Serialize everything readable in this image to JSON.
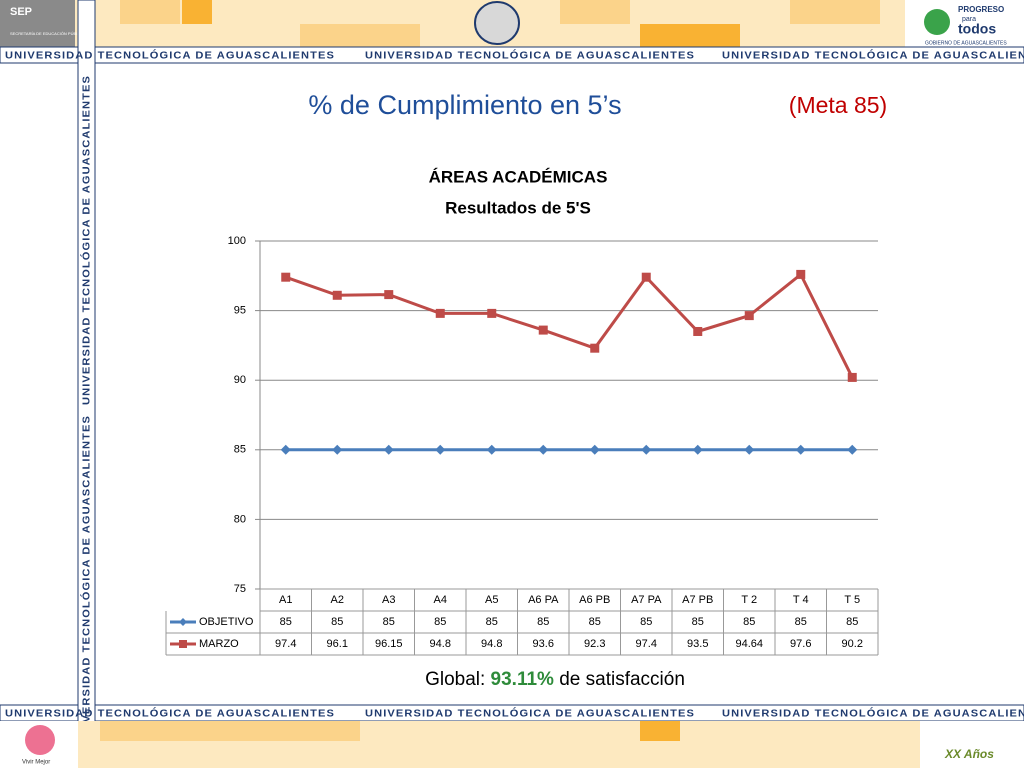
{
  "slide": {
    "title": "% de Cumplimiento en 5’s",
    "goal": "(Meta 85)",
    "global_prefix": "Global:",
    "global_value": "93.11%",
    "global_suffix": "de satisfacción",
    "banner": "UNIVERSIDAD TECNOLÓGICA DE AGUASCALIENTES",
    "sep_logo": "SEP",
    "sep_name": "SECRETARÍA DE EDUCACIÓN PÚBLICA",
    "progreso": "PROGRESO",
    "para": "para",
    "todos": "todos",
    "gobierno": "GOBIERNO DE AGUASCALIENTES",
    "vivir": "Vivir Mejor",
    "aniversario": "XX Años"
  },
  "chart_data": {
    "type": "line",
    "title": "ÁREAS ACADÉMICAS",
    "subtitle": "Resultados de 5'S",
    "categories": [
      "A1",
      "A2",
      "A3",
      "A4",
      "A5",
      "A6 PA",
      "A6 PB",
      "A7 PA",
      "A7 PB",
      "T 2",
      "T 4",
      "T 5"
    ],
    "series": [
      {
        "name": "OBJETIVO",
        "color": "#4a7ebb",
        "marker": "diamond",
        "values": [
          85,
          85,
          85,
          85,
          85,
          85,
          85,
          85,
          85,
          85,
          85,
          85
        ]
      },
      {
        "name": "MARZO",
        "color": "#be4b48",
        "marker": "square",
        "values": [
          97.4,
          96.1,
          96.15,
          94.8,
          94.8,
          93.6,
          92.3,
          97.4,
          93.5,
          94.64,
          97.6,
          90.2
        ]
      }
    ],
    "ylim": [
      75,
      100
    ],
    "yticks": [
      75,
      80,
      85,
      90,
      95,
      100
    ],
    "grid": true,
    "data_table": true
  }
}
